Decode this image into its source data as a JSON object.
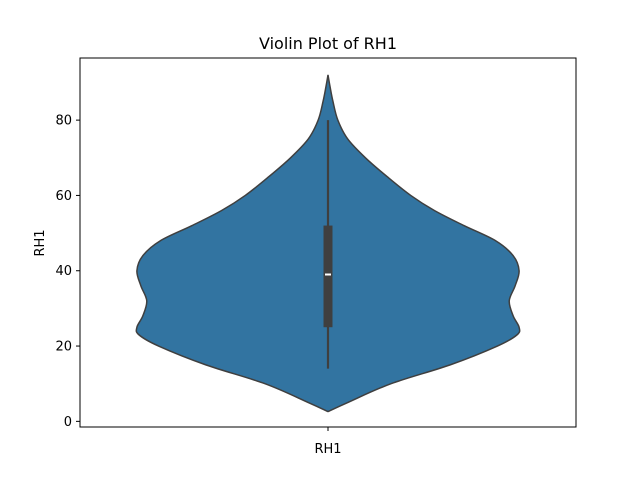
{
  "chart_data": {
    "type": "violin",
    "title": "Violin Plot of RH1",
    "xlabel": "",
    "ylabel": "RH1",
    "categories": [
      "RH1"
    ],
    "yticks": [
      0,
      20,
      40,
      60,
      80
    ],
    "ylim": [
      -1.5,
      96.5
    ],
    "grid": false,
    "legend": "none",
    "color": "#3274a1",
    "edge_color": "#3f3f3f",
    "series": [
      {
        "category": "RH1",
        "density_profile": [
          {
            "y": 2.6,
            "w": 0.0
          },
          {
            "y": 5,
            "w": 0.1
          },
          {
            "y": 10,
            "w": 0.32
          },
          {
            "y": 15,
            "w": 0.62
          },
          {
            "y": 20,
            "w": 0.86
          },
          {
            "y": 23,
            "w": 0.96
          },
          {
            "y": 25,
            "w": 0.97
          },
          {
            "y": 28,
            "w": 0.94
          },
          {
            "y": 32,
            "w": 0.92
          },
          {
            "y": 36,
            "w": 0.95
          },
          {
            "y": 40,
            "w": 0.97
          },
          {
            "y": 44,
            "w": 0.94
          },
          {
            "y": 48,
            "w": 0.85
          },
          {
            "y": 52,
            "w": 0.69
          },
          {
            "y": 56,
            "w": 0.54
          },
          {
            "y": 60,
            "w": 0.42
          },
          {
            "y": 65,
            "w": 0.3
          },
          {
            "y": 70,
            "w": 0.19
          },
          {
            "y": 75,
            "w": 0.1
          },
          {
            "y": 80,
            "w": 0.05
          },
          {
            "y": 85,
            "w": 0.025
          },
          {
            "y": 89,
            "w": 0.01
          },
          {
            "y": 92,
            "w": 0.0
          }
        ],
        "box": {
          "whisker_low": 14,
          "q1": 25,
          "median": 39,
          "q3": 52,
          "whisker_high": 80
        }
      }
    ]
  }
}
